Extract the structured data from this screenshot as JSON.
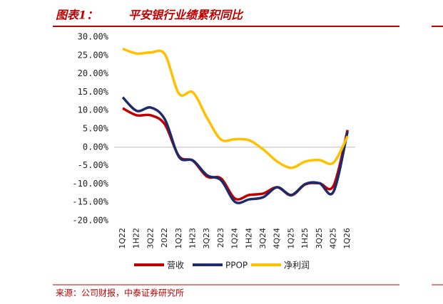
{
  "chart_data": {
    "type": "line",
    "figure_label": "图表1：",
    "title": "平安银行业绩累积同比",
    "source": "来源：公司财报，中泰证券研究所",
    "categories": [
      "1Q22",
      "1H22",
      "3Q22",
      "2022",
      "1Q23",
      "1H23",
      "3Q23",
      "2023",
      "1Q24",
      "1H24",
      "3Q24",
      "4Q24",
      "1Q25",
      "1H25",
      "3Q25",
      "4Q25",
      "1Q26"
    ],
    "series": [
      {
        "name": "营收",
        "color": "#c00000",
        "values": [
          10.6,
          8.7,
          8.7,
          6.2,
          -2.4,
          -3.7,
          -8.0,
          -8.5,
          -14.0,
          -13.0,
          -12.6,
          -10.9,
          -13.1,
          -10.1,
          -9.8,
          -10.5,
          4.7
        ]
      },
      {
        "name": "PPOP",
        "color": "#1f2a6b",
        "values": [
          13.6,
          9.9,
          10.8,
          7.6,
          -2.6,
          -3.6,
          -7.6,
          -9.0,
          -14.9,
          -14.2,
          -13.6,
          -10.9,
          -13.0,
          -10.0,
          -9.8,
          -12.1,
          4.3
        ]
      },
      {
        "name": "净利润",
        "color": "#ffc000",
        "values": [
          26.8,
          25.5,
          25.8,
          25.3,
          14.6,
          14.9,
          8.0,
          2.1,
          2.2,
          1.9,
          -0.6,
          -3.9,
          -5.6,
          -3.9,
          -3.5,
          -4.2,
          3.0
        ]
      }
    ],
    "ylim": [
      -20,
      30
    ],
    "yticks": [
      {
        "value": 30,
        "label": "30.00%"
      },
      {
        "value": 25,
        "label": "25.00%"
      },
      {
        "value": 20,
        "label": "20.00%"
      },
      {
        "value": 15,
        "label": "15.00%"
      },
      {
        "value": 10,
        "label": "10.00%"
      },
      {
        "value": 5,
        "label": "5.00%"
      },
      {
        "value": 0,
        "label": "0.00%"
      },
      {
        "value": -5,
        "label": "-5.00%"
      },
      {
        "value": -10,
        "label": "-10.00%"
      },
      {
        "value": -15,
        "label": "-15.00%"
      },
      {
        "value": -20,
        "label": "-20.00%"
      }
    ]
  }
}
